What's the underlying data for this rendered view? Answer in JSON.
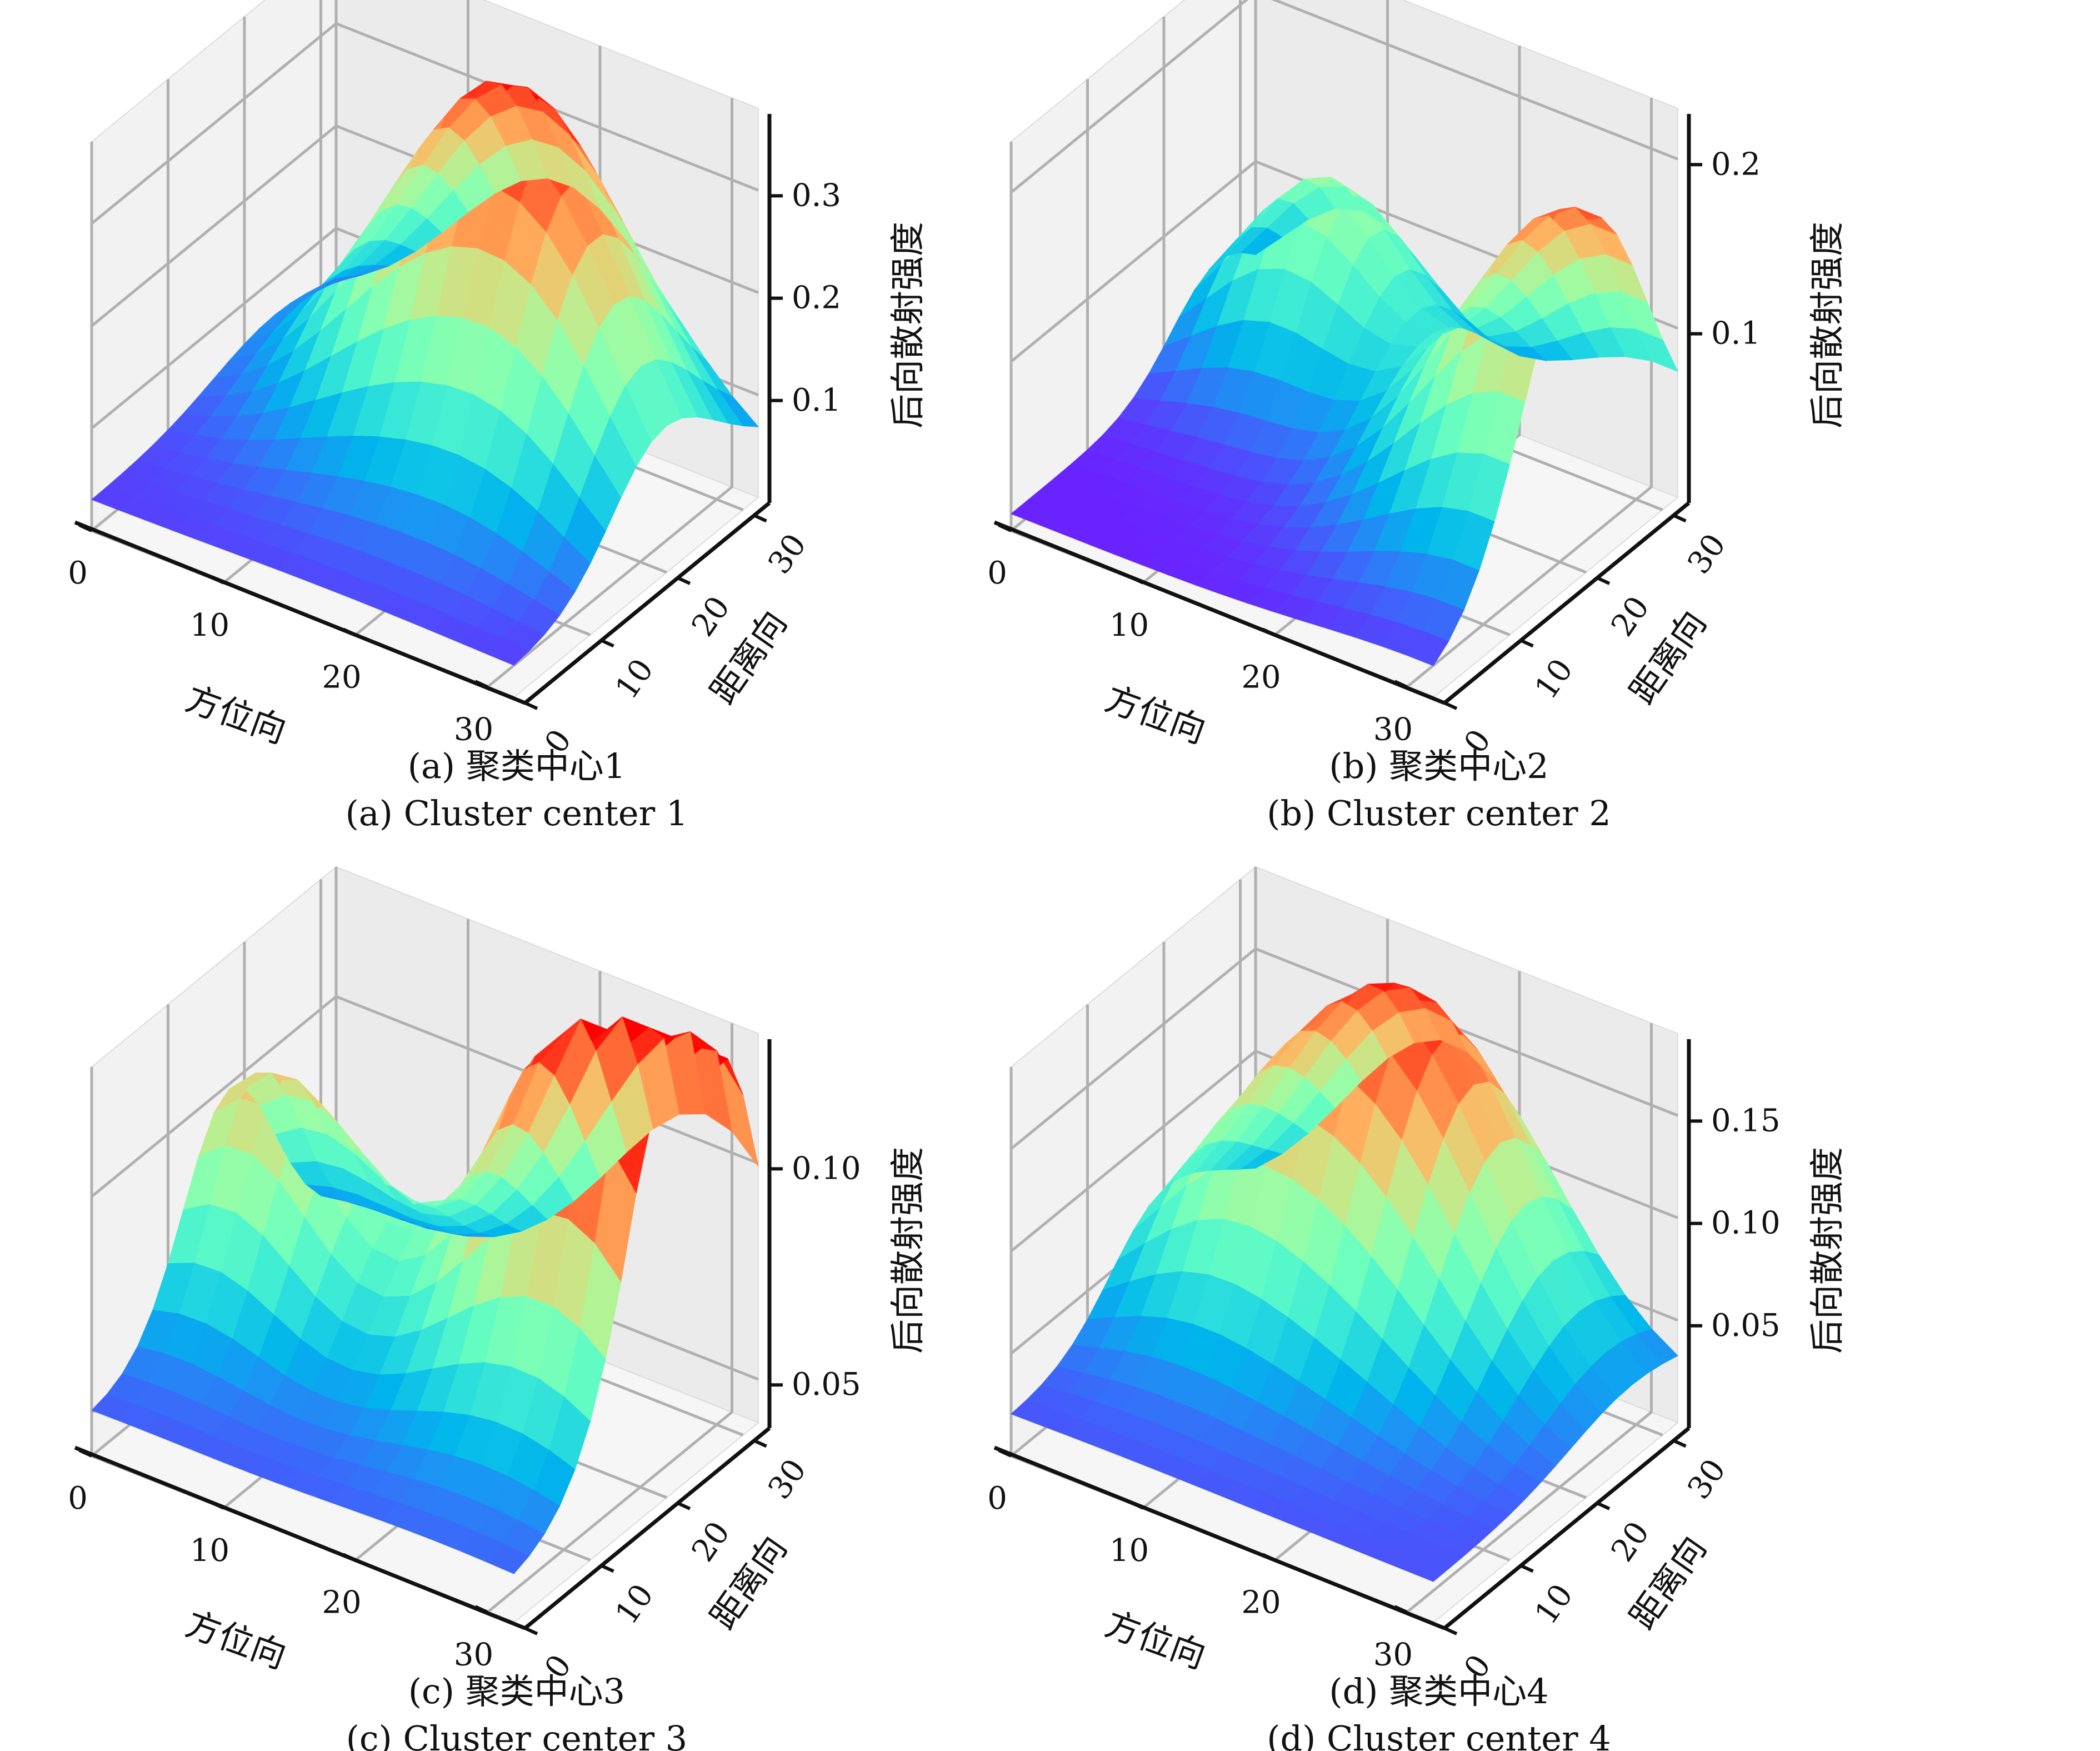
{
  "chart_data": [
    {
      "type": "surface3d",
      "id": "a",
      "caption_cn": "(a) 聚类中心1",
      "caption_en": "(a) Cluster center 1",
      "xlabel": "方位向",
      "ylabel": "距离向",
      "zlabel": "后向散射强度",
      "x_ticks": [
        "0",
        "10",
        "20",
        "30"
      ],
      "y_ticks": [
        "0",
        "10",
        "20",
        "30"
      ],
      "z_ticks": [
        "0.1",
        "0.2",
        "0.3"
      ],
      "xlim": [
        0,
        32
      ],
      "ylim": [
        0,
        32
      ],
      "zlim": [
        0.0,
        0.38
      ],
      "colormap": "rainbow",
      "grid": true,
      "peaks": [
        {
          "x": 17,
          "y": 24,
          "z": 0.36
        },
        {
          "x": 26,
          "y": 18,
          "z": 0.14
        }
      ],
      "base_z": 0.03
    },
    {
      "type": "surface3d",
      "id": "b",
      "caption_cn": "(b) 聚类中心2",
      "caption_en": "(b) Cluster center 2",
      "xlabel": "方位向",
      "ylabel": "距离向",
      "zlabel": "后向散射强度",
      "x_ticks": [
        "0",
        "10",
        "20",
        "30"
      ],
      "y_ticks": [
        "0",
        "10",
        "20",
        "30"
      ],
      "z_ticks": [
        "0.1",
        "0.2"
      ],
      "xlim": [
        0,
        32
      ],
      "ylim": [
        0,
        32
      ],
      "zlim": [
        0.0,
        0.23
      ],
      "colormap": "rainbow",
      "grid": true,
      "peaks": [
        {
          "x": 31,
          "y": 20,
          "z": 0.21
        },
        {
          "x": 8,
          "y": 27,
          "z": 0.13
        }
      ],
      "base_z": 0.01
    },
    {
      "type": "surface3d",
      "id": "c",
      "caption_cn": "(c) 聚类中心3",
      "caption_en": "(c) Cluster center 3",
      "xlabel": "方位向",
      "ylabel": "距离向",
      "zlabel": "后向散射强度",
      "x_ticks": [
        "0",
        "10",
        "20",
        "30"
      ],
      "y_ticks": [
        "0",
        "10",
        "20",
        "30"
      ],
      "z_ticks": [
        "0.05",
        "0.10"
      ],
      "xlim": [
        0,
        32
      ],
      "ylim": [
        0,
        32
      ],
      "zlim": [
        0.04,
        0.13
      ],
      "colormap": "rainbow",
      "grid": true,
      "peaks": [
        {
          "x": 26,
          "y": 22,
          "z": 0.125
        },
        {
          "x": 3,
          "y": 18,
          "z": 0.105
        },
        {
          "x": 30,
          "y": 24,
          "z": 0.11
        }
      ],
      "base_z": 0.05
    },
    {
      "type": "surface3d",
      "id": "d",
      "caption_cn": "(d) 聚类中心4",
      "caption_en": "(d) Cluster center 4",
      "xlabel": "方位向",
      "ylabel": "距离向",
      "zlabel": "后向散射强度",
      "x_ticks": [
        "0",
        "10",
        "20",
        "30"
      ],
      "y_ticks": [
        "0",
        "10",
        "20",
        "30"
      ],
      "z_ticks": [
        "0.05",
        "0.10",
        "0.15"
      ],
      "xlim": [
        0,
        32
      ],
      "ylim": [
        0,
        32
      ],
      "zlim": [
        0.0,
        0.19
      ],
      "colormap": "rainbow",
      "grid": true,
      "peaks": [
        {
          "x": 15,
          "y": 26,
          "z": 0.18
        },
        {
          "x": 6,
          "y": 18,
          "z": 0.07
        }
      ],
      "base_z": 0.02
    }
  ]
}
